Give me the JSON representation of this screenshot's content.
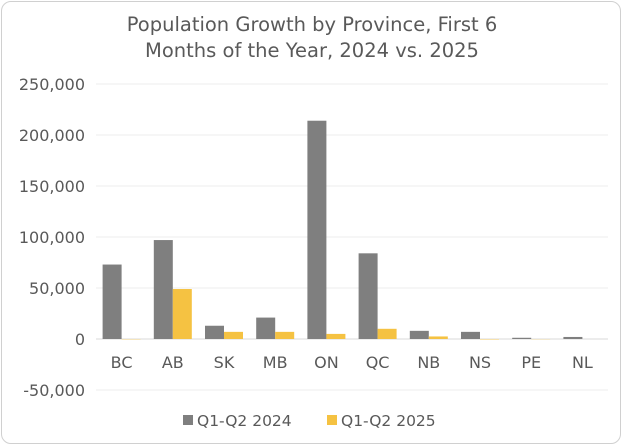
{
  "chart_data": {
    "type": "bar",
    "title_lines": [
      "Population Growth by Province, First 6",
      "Months of the Year, 2024 vs. 2025"
    ],
    "categories": [
      "BC",
      "AB",
      "SK",
      "MB",
      "ON",
      "QC",
      "NB",
      "NS",
      "PE",
      "NL"
    ],
    "series": [
      {
        "name": "Q1-Q2 2024",
        "color": "#7f7f7f",
        "values": [
          73000,
          97000,
          13000,
          21000,
          214000,
          84000,
          8000,
          7000,
          1200,
          2000
        ]
      },
      {
        "name": "Q1-Q2 2025",
        "color": "#f5c242",
        "values": [
          -300,
          49000,
          7000,
          7000,
          5000,
          10000,
          2500,
          -400,
          -200,
          0
        ]
      }
    ],
    "ylim": [
      -50000,
      250000
    ],
    "yticks": [
      250000,
      200000,
      150000,
      100000,
      50000,
      0,
      -50000
    ],
    "ytick_labels": [
      "250,000",
      "200,000",
      "150,000",
      "100,000",
      "50,000",
      "0",
      "-50,000"
    ],
    "grid": true,
    "legend_position": "bottom"
  }
}
